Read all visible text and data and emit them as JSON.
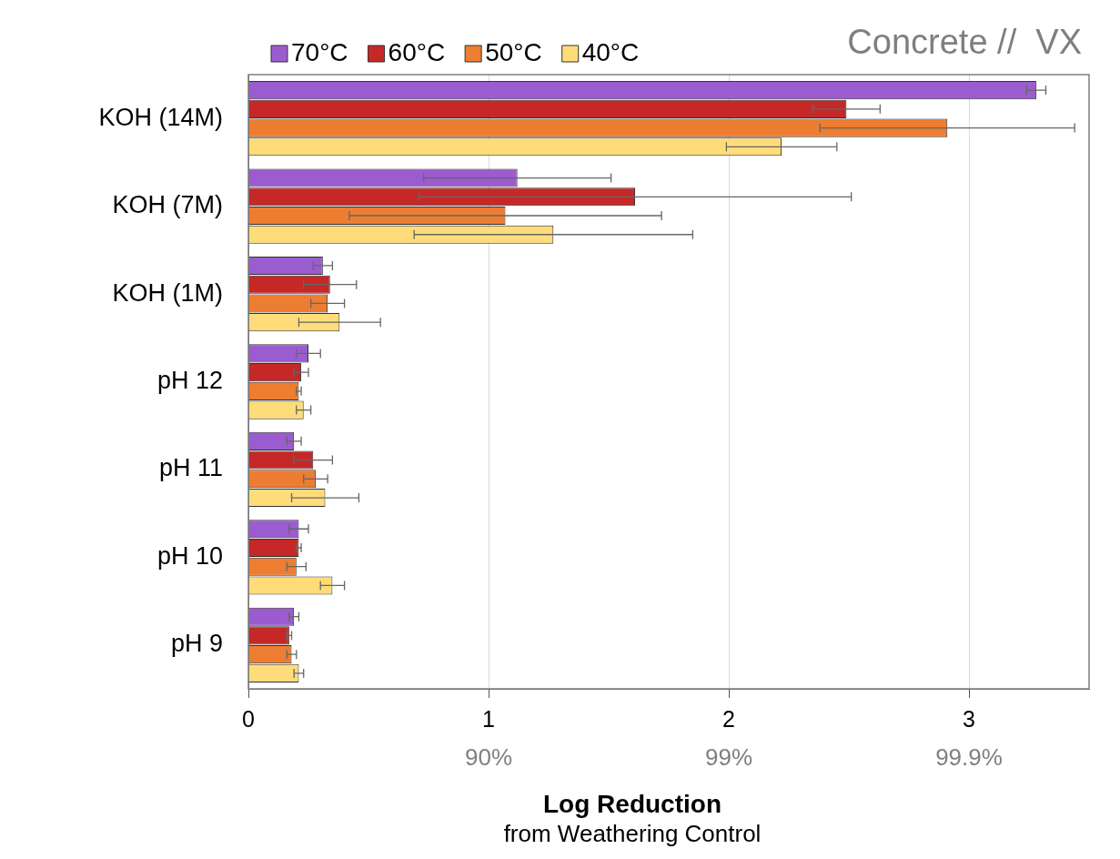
{
  "chart_data": {
    "type": "bar",
    "orientation": "horizontal",
    "title": "Concrete //  VX",
    "xlabel": "Log Reduction",
    "annotations": [
      "from Weathering Control",
      "90%",
      "99%",
      "99.9%"
    ],
    "categories": [
      "KOH (14M)",
      "KOH (7M)",
      "KOH (1M)",
      "pH 12",
      "pH 11",
      "pH 10",
      "pH 9"
    ],
    "series": [
      {
        "name": "70°C",
        "color": "#9b5cd0",
        "values": [
          3.28,
          1.12,
          0.31,
          0.25,
          0.19,
          0.21,
          0.19
        ],
        "errors": [
          0.04,
          0.39,
          0.04,
          0.05,
          0.03,
          0.04,
          0.02
        ]
      },
      {
        "name": "60°C",
        "color": "#c62828",
        "values": [
          2.49,
          1.61,
          0.34,
          0.22,
          0.27,
          0.21,
          0.17
        ],
        "errors": [
          0.14,
          0.9,
          0.11,
          0.03,
          0.08,
          0.01,
          0.01
        ]
      },
      {
        "name": "50°C",
        "color": "#ed7d31",
        "values": [
          2.91,
          1.07,
          0.33,
          0.21,
          0.28,
          0.2,
          0.18
        ],
        "errors": [
          0.53,
          0.65,
          0.07,
          0.01,
          0.05,
          0.04,
          0.02
        ]
      },
      {
        "name": "40°C",
        "color": "#ffdc7a",
        "values": [
          2.22,
          1.27,
          0.38,
          0.23,
          0.32,
          0.35,
          0.21
        ],
        "errors": [
          0.23,
          0.58,
          0.17,
          0.03,
          0.14,
          0.05,
          0.02
        ]
      }
    ],
    "xlim": [
      0,
      3.5
    ],
    "xticks": [
      0,
      1,
      2,
      3
    ],
    "grid": "x",
    "legend": "top left"
  }
}
